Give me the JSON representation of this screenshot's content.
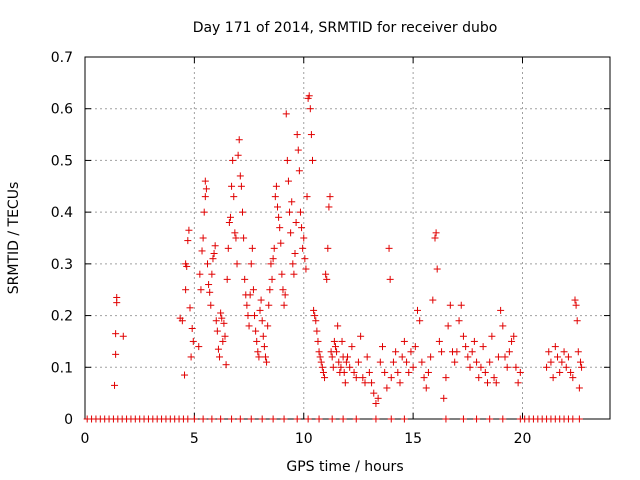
{
  "chart_data": {
    "type": "scatter",
    "title": "Day 171 of 2014, SRMTID for receiver dubo",
    "xlabel": "GPS time / hours",
    "ylabel": "SRMTID / TECUs",
    "xlim": [
      0,
      24
    ],
    "ylim": [
      0,
      0.7
    ],
    "xticks": [
      0,
      5,
      10,
      15,
      20
    ],
    "yticks": [
      0,
      0.1,
      0.2,
      0.3,
      0.4,
      0.5,
      0.6,
      0.7
    ],
    "xtick_labels": [
      "0",
      "5",
      "10",
      "15",
      "20"
    ],
    "ytick_labels": [
      "0",
      "0.1",
      "0.2",
      "0.3",
      "0.4",
      "0.5",
      "0.6",
      "0.7"
    ],
    "grid": true,
    "marker": "+",
    "color": "#e00000",
    "series": [
      {
        "name": "SRMTID",
        "zero_points_x": [
          0.1,
          0.3,
          0.5,
          0.7,
          0.9,
          1.1,
          1.3,
          1.5,
          1.7,
          1.9,
          2.1,
          2.3,
          2.5,
          2.7,
          2.9,
          3.1,
          3.3,
          3.5,
          3.7,
          3.9,
          4.1,
          4.3,
          4.5,
          4.7,
          5.0,
          5.4,
          5.8,
          6.2,
          6.7,
          7.1,
          7.6,
          8.1,
          8.6,
          9.1,
          9.7,
          10.2,
          10.7,
          11.3,
          11.8,
          12.4,
          13.3,
          14.0,
          14.6,
          16.5,
          17.3,
          17.9,
          18.5,
          19.1,
          19.9,
          20.1,
          20.3,
          20.5,
          20.7,
          20.9,
          21.1,
          21.3,
          21.5,
          21.7,
          21.9,
          22.1,
          22.3,
          22.6
        ],
        "points": [
          [
            1.35,
            0.065
          ],
          [
            1.4,
            0.125
          ],
          [
            1.4,
            0.165
          ],
          [
            1.45,
            0.225
          ],
          [
            1.45,
            0.235
          ],
          [
            1.75,
            0.16
          ],
          [
            4.35,
            0.195
          ],
          [
            4.45,
            0.19
          ],
          [
            4.55,
            0.085
          ],
          [
            4.6,
            0.25
          ],
          [
            4.6,
            0.3
          ],
          [
            4.65,
            0.295
          ],
          [
            4.7,
            0.345
          ],
          [
            4.75,
            0.365
          ],
          [
            4.8,
            0.215
          ],
          [
            4.85,
            0.12
          ],
          [
            4.9,
            0.175
          ],
          [
            4.95,
            0.15
          ],
          [
            5.2,
            0.14
          ],
          [
            5.25,
            0.28
          ],
          [
            5.3,
            0.25
          ],
          [
            5.35,
            0.325
          ],
          [
            5.4,
            0.35
          ],
          [
            5.45,
            0.4
          ],
          [
            5.5,
            0.43
          ],
          [
            5.5,
            0.46
          ],
          [
            5.55,
            0.445
          ],
          [
            5.6,
            0.3
          ],
          [
            5.65,
            0.26
          ],
          [
            5.7,
            0.245
          ],
          [
            5.75,
            0.22
          ],
          [
            5.8,
            0.28
          ],
          [
            5.85,
            0.31
          ],
          [
            5.9,
            0.32
          ],
          [
            5.95,
            0.335
          ],
          [
            6.0,
            0.19
          ],
          [
            6.05,
            0.17
          ],
          [
            6.1,
            0.135
          ],
          [
            6.15,
            0.12
          ],
          [
            6.2,
            0.205
          ],
          [
            6.25,
            0.195
          ],
          [
            6.3,
            0.15
          ],
          [
            6.35,
            0.185
          ],
          [
            6.4,
            0.16
          ],
          [
            6.45,
            0.105
          ],
          [
            6.5,
            0.27
          ],
          [
            6.55,
            0.33
          ],
          [
            6.6,
            0.38
          ],
          [
            6.65,
            0.39
          ],
          [
            6.7,
            0.45
          ],
          [
            6.75,
            0.5
          ],
          [
            6.8,
            0.43
          ],
          [
            6.85,
            0.36
          ],
          [
            6.9,
            0.35
          ],
          [
            6.95,
            0.3
          ],
          [
            7.0,
            0.51
          ],
          [
            7.05,
            0.54
          ],
          [
            7.1,
            0.47
          ],
          [
            7.15,
            0.45
          ],
          [
            7.2,
            0.4
          ],
          [
            7.25,
            0.35
          ],
          [
            7.3,
            0.27
          ],
          [
            7.35,
            0.24
          ],
          [
            7.4,
            0.22
          ],
          [
            7.45,
            0.2
          ],
          [
            7.5,
            0.18
          ],
          [
            7.55,
            0.24
          ],
          [
            7.6,
            0.3
          ],
          [
            7.65,
            0.33
          ],
          [
            7.7,
            0.25
          ],
          [
            7.75,
            0.2
          ],
          [
            7.8,
            0.17
          ],
          [
            7.85,
            0.15
          ],
          [
            7.9,
            0.13
          ],
          [
            7.95,
            0.12
          ],
          [
            8.0,
            0.21
          ],
          [
            8.05,
            0.23
          ],
          [
            8.1,
            0.19
          ],
          [
            8.15,
            0.16
          ],
          [
            8.2,
            0.14
          ],
          [
            8.25,
            0.12
          ],
          [
            8.3,
            0.11
          ],
          [
            8.35,
            0.18
          ],
          [
            8.4,
            0.22
          ],
          [
            8.45,
            0.25
          ],
          [
            8.5,
            0.3
          ],
          [
            8.55,
            0.27
          ],
          [
            8.6,
            0.31
          ],
          [
            8.65,
            0.33
          ],
          [
            8.7,
            0.43
          ],
          [
            8.75,
            0.45
          ],
          [
            8.8,
            0.41
          ],
          [
            8.85,
            0.39
          ],
          [
            8.9,
            0.37
          ],
          [
            8.95,
            0.34
          ],
          [
            9.0,
            0.28
          ],
          [
            9.05,
            0.25
          ],
          [
            9.1,
            0.22
          ],
          [
            9.15,
            0.24
          ],
          [
            9.2,
            0.59
          ],
          [
            9.25,
            0.5
          ],
          [
            9.3,
            0.46
          ],
          [
            9.35,
            0.4
          ],
          [
            9.4,
            0.36
          ],
          [
            9.45,
            0.42
          ],
          [
            9.5,
            0.3
          ],
          [
            9.55,
            0.28
          ],
          [
            9.6,
            0.32
          ],
          [
            9.65,
            0.38
          ],
          [
            9.7,
            0.55
          ],
          [
            9.75,
            0.52
          ],
          [
            9.8,
            0.48
          ],
          [
            9.85,
            0.4
          ],
          [
            9.9,
            0.37
          ],
          [
            9.95,
            0.33
          ],
          [
            10.0,
            0.35
          ],
          [
            10.05,
            0.31
          ],
          [
            10.1,
            0.29
          ],
          [
            10.15,
            0.43
          ],
          [
            10.2,
            0.62
          ],
          [
            10.25,
            0.625
          ],
          [
            10.3,
            0.6
          ],
          [
            10.35,
            0.55
          ],
          [
            10.4,
            0.5
          ],
          [
            10.45,
            0.21
          ],
          [
            10.5,
            0.2
          ],
          [
            10.55,
            0.19
          ],
          [
            10.6,
            0.17
          ],
          [
            10.65,
            0.15
          ],
          [
            10.7,
            0.13
          ],
          [
            10.75,
            0.12
          ],
          [
            10.8,
            0.11
          ],
          [
            10.85,
            0.1
          ],
          [
            10.9,
            0.09
          ],
          [
            10.95,
            0.08
          ],
          [
            11.0,
            0.28
          ],
          [
            11.05,
            0.27
          ],
          [
            11.1,
            0.33
          ],
          [
            11.15,
            0.41
          ],
          [
            11.2,
            0.43
          ],
          [
            11.25,
            0.13
          ],
          [
            11.3,
            0.12
          ],
          [
            11.35,
            0.1
          ],
          [
            11.4,
            0.15
          ],
          [
            11.45,
            0.14
          ],
          [
            11.5,
            0.13
          ],
          [
            11.55,
            0.18
          ],
          [
            11.6,
            0.11
          ],
          [
            11.65,
            0.09
          ],
          [
            11.7,
            0.1
          ],
          [
            11.75,
            0.15
          ],
          [
            11.8,
            0.12
          ],
          [
            11.85,
            0.09
          ],
          [
            11.9,
            0.07
          ],
          [
            11.95,
            0.11
          ],
          [
            12.0,
            0.12
          ],
          [
            12.1,
            0.1
          ],
          [
            12.2,
            0.14
          ],
          [
            12.3,
            0.09
          ],
          [
            12.4,
            0.08
          ],
          [
            12.5,
            0.11
          ],
          [
            12.6,
            0.16
          ],
          [
            12.7,
            0.08
          ],
          [
            12.8,
            0.07
          ],
          [
            12.9,
            0.12
          ],
          [
            13.0,
            0.09
          ],
          [
            13.1,
            0.07
          ],
          [
            13.2,
            0.05
          ],
          [
            13.3,
            0.03
          ],
          [
            13.4,
            0.04
          ],
          [
            13.5,
            0.11
          ],
          [
            13.6,
            0.14
          ],
          [
            13.7,
            0.09
          ],
          [
            13.8,
            0.06
          ],
          [
            13.9,
            0.33
          ],
          [
            13.95,
            0.27
          ],
          [
            14.0,
            0.08
          ],
          [
            14.1,
            0.11
          ],
          [
            14.2,
            0.13
          ],
          [
            14.3,
            0.09
          ],
          [
            14.4,
            0.07
          ],
          [
            14.5,
            0.12
          ],
          [
            14.6,
            0.15
          ],
          [
            14.7,
            0.11
          ],
          [
            14.8,
            0.09
          ],
          [
            14.9,
            0.13
          ],
          [
            15.0,
            0.1
          ],
          [
            15.1,
            0.14
          ],
          [
            15.2,
            0.21
          ],
          [
            15.3,
            0.19
          ],
          [
            15.4,
            0.11
          ],
          [
            15.5,
            0.08
          ],
          [
            15.6,
            0.06
          ],
          [
            15.7,
            0.09
          ],
          [
            15.8,
            0.12
          ],
          [
            15.9,
            0.23
          ],
          [
            16.0,
            0.35
          ],
          [
            16.05,
            0.36
          ],
          [
            16.1,
            0.29
          ],
          [
            16.2,
            0.15
          ],
          [
            16.3,
            0.13
          ],
          [
            16.4,
            0.04
          ],
          [
            16.5,
            0.08
          ],
          [
            16.6,
            0.18
          ],
          [
            16.7,
            0.22
          ],
          [
            16.8,
            0.13
          ],
          [
            16.9,
            0.11
          ],
          [
            17.0,
            0.13
          ],
          [
            17.1,
            0.19
          ],
          [
            17.2,
            0.22
          ],
          [
            17.3,
            0.16
          ],
          [
            17.4,
            0.14
          ],
          [
            17.5,
            0.12
          ],
          [
            17.6,
            0.1
          ],
          [
            17.7,
            0.13
          ],
          [
            17.8,
            0.15
          ],
          [
            17.9,
            0.11
          ],
          [
            18.0,
            0.08
          ],
          [
            18.1,
            0.1
          ],
          [
            18.2,
            0.14
          ],
          [
            18.3,
            0.09
          ],
          [
            18.4,
            0.07
          ],
          [
            18.5,
            0.11
          ],
          [
            18.6,
            0.16
          ],
          [
            18.7,
            0.08
          ],
          [
            18.8,
            0.07
          ],
          [
            18.9,
            0.12
          ],
          [
            19.0,
            0.21
          ],
          [
            19.1,
            0.18
          ],
          [
            19.2,
            0.12
          ],
          [
            19.3,
            0.1
          ],
          [
            19.4,
            0.13
          ],
          [
            19.5,
            0.15
          ],
          [
            19.6,
            0.16
          ],
          [
            19.7,
            0.1
          ],
          [
            19.8,
            0.07
          ],
          [
            19.9,
            0.09
          ],
          [
            21.1,
            0.1
          ],
          [
            21.2,
            0.13
          ],
          [
            21.3,
            0.11
          ],
          [
            21.4,
            0.08
          ],
          [
            21.5,
            0.14
          ],
          [
            21.6,
            0.12
          ],
          [
            21.7,
            0.09
          ],
          [
            21.8,
            0.11
          ],
          [
            21.9,
            0.13
          ],
          [
            22.0,
            0.1
          ],
          [
            22.1,
            0.12
          ],
          [
            22.2,
            0.09
          ],
          [
            22.3,
            0.08
          ],
          [
            22.4,
            0.23
          ],
          [
            22.45,
            0.22
          ],
          [
            22.5,
            0.19
          ],
          [
            22.55,
            0.13
          ],
          [
            22.6,
            0.06
          ],
          [
            22.65,
            0.11
          ],
          [
            22.7,
            0.1
          ]
        ]
      }
    ]
  }
}
